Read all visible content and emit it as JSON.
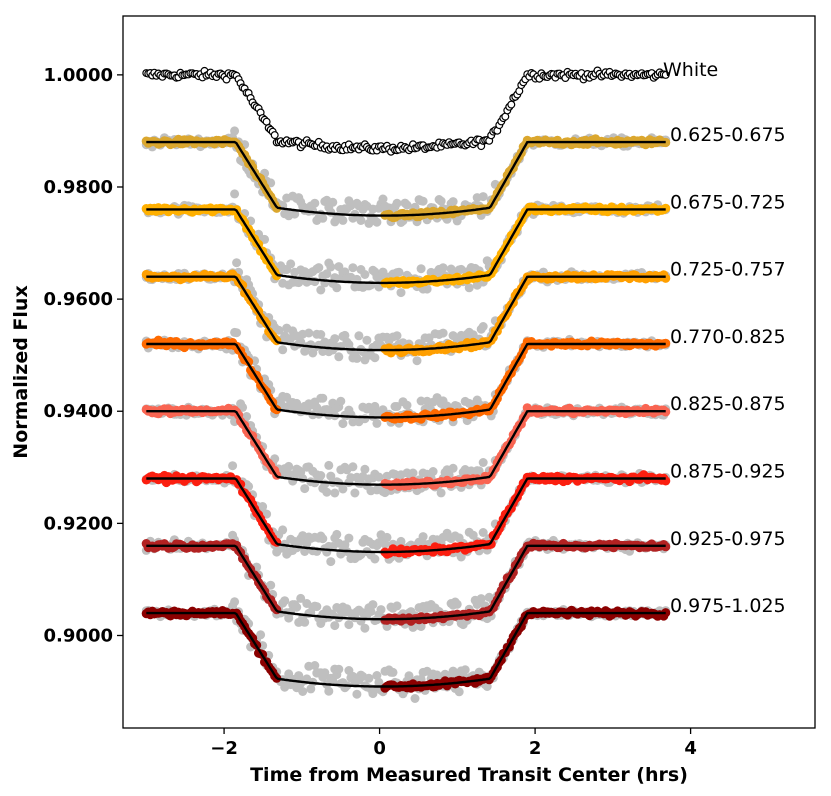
{
  "chart_data": {
    "type": "scatter",
    "title": "",
    "xlabel": "Time from Measured Transit Center (hrs)",
    "ylabel": "Normalized Flux",
    "xlim": [
      -3.3,
      5.6
    ],
    "ylim": [
      0.8835,
      1.0105
    ],
    "x_ticks": [
      -2,
      0,
      2,
      4
    ],
    "x_tick_labels": [
      "−2",
      "0",
      "2",
      "4"
    ],
    "y_ticks": [
      0.9,
      0.92,
      0.94,
      0.96,
      0.98,
      1.0
    ],
    "y_tick_labels": [
      "0.9000",
      "0.9200",
      "0.9400",
      "0.9600",
      "0.9800",
      "1.0000"
    ],
    "grid": false,
    "time_range": [
      -3.0,
      3.68
    ],
    "transit_model": {
      "ingress_start": -1.85,
      "ingress_end": -1.32,
      "egress_start": 1.42,
      "egress_end": 1.9,
      "transit_depth": 0.0117,
      "limb_curvature": 0.0014
    },
    "series": [
      {
        "name": "White",
        "baseline": 1.0,
        "color": "#ffffff",
        "edge": "#000000",
        "gray_background": false
      },
      {
        "name": "0.625-0.675",
        "baseline": 0.988,
        "color": "#dba72e",
        "edge": "",
        "gray_background": true
      },
      {
        "name": "0.675-0.725",
        "baseline": 0.976,
        "color": "#ffb000",
        "edge": "",
        "gray_background": true
      },
      {
        "name": "0.725-0.757",
        "baseline": 0.964,
        "color": "#ff9f00",
        "edge": "",
        "gray_background": true
      },
      {
        "name": "0.770-0.825",
        "baseline": 0.952,
        "color": "#ff6a00",
        "edge": "",
        "gray_background": true
      },
      {
        "name": "0.825-0.875",
        "baseline": 0.94,
        "color": "#f96552",
        "edge": "",
        "gray_background": true
      },
      {
        "name": "0.875-0.925",
        "baseline": 0.928,
        "color": "#fb1f10",
        "edge": "",
        "gray_background": true
      },
      {
        "name": "0.925-0.975",
        "baseline": 0.916,
        "color": "#b22222",
        "edge": "",
        "gray_background": true
      },
      {
        "name": "0.975-1.025",
        "baseline": 0.904,
        "color": "#8b0000",
        "edge": "",
        "gray_background": true
      }
    ],
    "model_line_color": "#000000",
    "residual_color": "#bfbfbf"
  }
}
